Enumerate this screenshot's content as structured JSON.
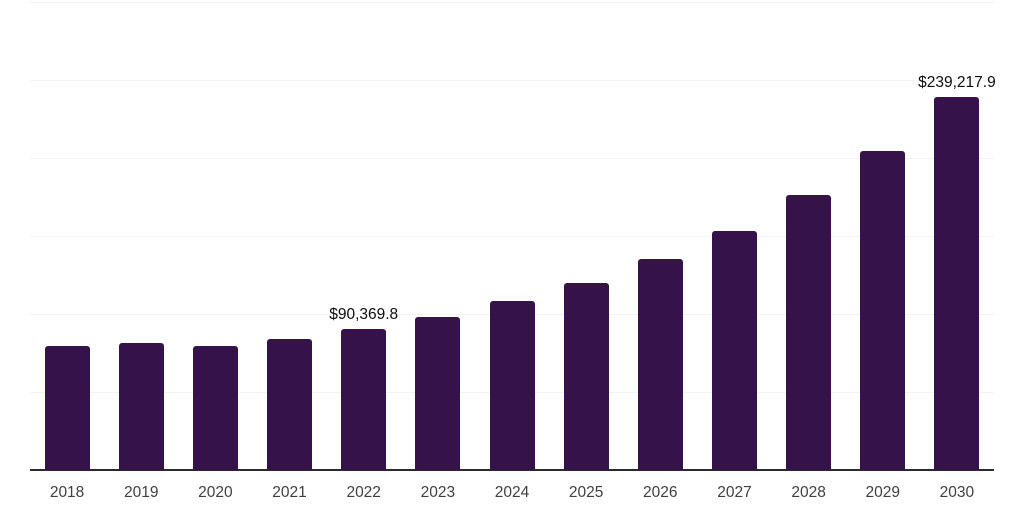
{
  "chart_data": {
    "type": "bar",
    "categories": [
      "2018",
      "2019",
      "2020",
      "2021",
      "2022",
      "2023",
      "2024",
      "2025",
      "2026",
      "2027",
      "2028",
      "2029",
      "2030"
    ],
    "values": [
      79500,
      81600,
      79500,
      84200,
      90369.8,
      98300,
      108300,
      120000,
      135000,
      153200,
      176000,
      204500,
      239217.9
    ],
    "point_labels": [
      "",
      "",
      "",
      "",
      "$90,369.8",
      "",
      "",
      "",
      "",
      "",
      "",
      "",
      "$239,217.9"
    ],
    "xlabel": "",
    "ylabel": "",
    "ylim": [
      0,
      300000
    ],
    "gridline_interval": 50000,
    "grid": "horizontal",
    "y_tick_labels_shown": false,
    "x_tick_labels_shown": true,
    "legend_position": "none"
  },
  "colors": {
    "bar": "#351249",
    "gridline": "#F2F2F2",
    "axis_line": "#2B2B2B",
    "x_tick_label": "#3F3F3F",
    "data_label": "#0D0D0D",
    "background": "#FFFFFF"
  }
}
